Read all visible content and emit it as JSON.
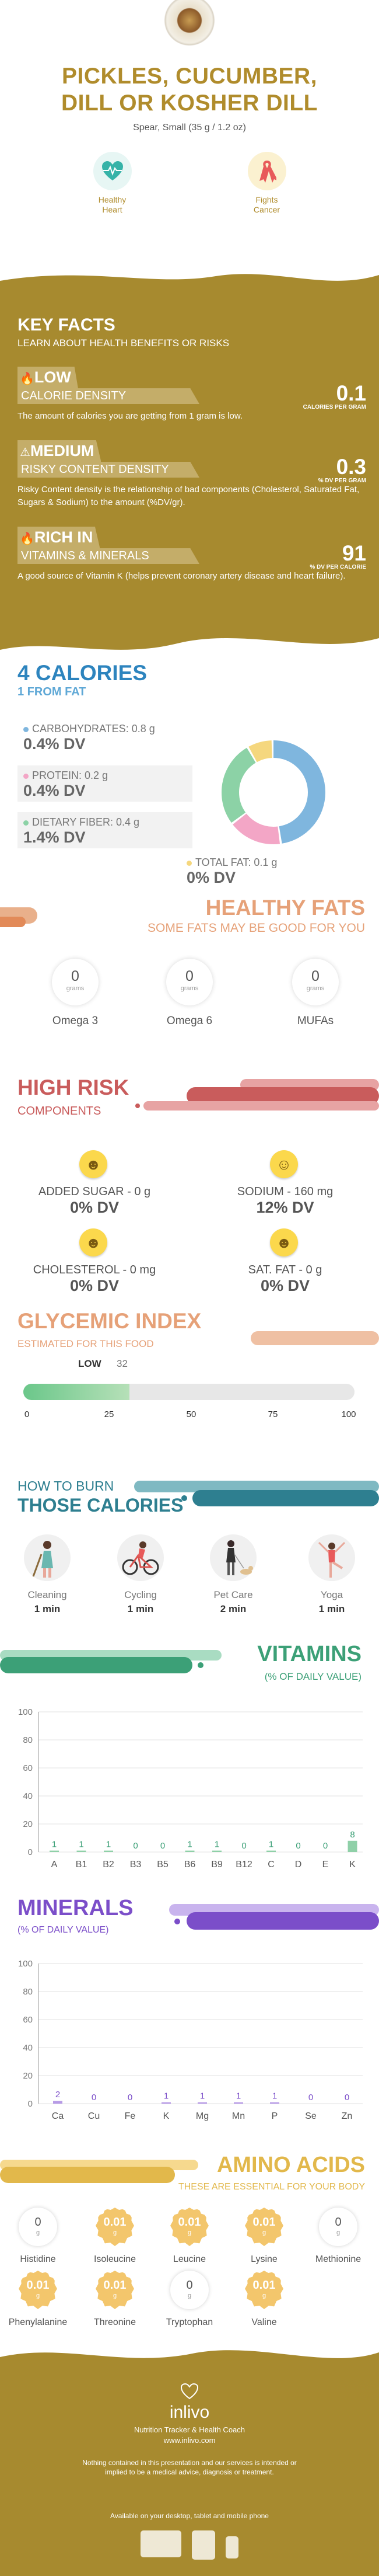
{
  "hero": {
    "title_line1": "PICKLES, CUCUMBER,",
    "title_line2": "DILL OR KOSHER DILL",
    "serving": "Spear, Small (35 g / 1.2 oz)",
    "badges": [
      {
        "icon": "heart-pulse-icon",
        "line1": "Healthy",
        "line2": "Heart",
        "color": "#36b3a8"
      },
      {
        "icon": "awareness-ribbon-icon",
        "line1": "Fights",
        "line2": "Cancer",
        "color": "#e85a5a"
      }
    ]
  },
  "key_facts": {
    "title": "KEY FACTS",
    "subtitle": "LEARN ABOUT HEALTH BENEFITS OR RISKS",
    "items": [
      {
        "icon": "flame-icon",
        "level": "LOW",
        "label": "CALORIE DENSITY",
        "value": "0.1",
        "unit": "CALORIES PER GRAM",
        "desc": "The amount of calories you are getting from 1 gram is low."
      },
      {
        "icon": "warning-icon",
        "level": "MEDIUM",
        "label": "RISKY CONTENT DENSITY",
        "value": "0.3",
        "unit": "% DV PER GRAM",
        "desc": "Risky Content density is the relationship of bad components (Cholesterol, Saturated Fat, Sugars & Sodium) to the amount (%DV/gr)."
      },
      {
        "icon": "flame-icon",
        "level": "RICH  IN",
        "label": "VITAMINS & MINERALS",
        "value": "91",
        "unit": "% DV PER CALORIE",
        "desc": "A good source of Vitamin K (helps prevent coronary artery disease and heart failure)."
      }
    ]
  },
  "calories": {
    "title": "4 CALORIES",
    "subtitle": "1 FROM FAT",
    "nutrients": [
      {
        "label": "CARBOHYDRATES: 0.8 g",
        "dv": "0.4% DV",
        "color": "#7fb6de",
        "bg": "#ffffff"
      },
      {
        "label": "PROTEIN: 0.2 g",
        "dv": "0.4% DV",
        "color": "#f3a6c6",
        "bg": "#f2f2f2"
      },
      {
        "label": "DIETARY FIBER: 0.4 g",
        "dv": "1.4% DV",
        "color": "#8cd2a6",
        "bg": "#f2f2f2"
      },
      {
        "label": "TOTAL FAT: 0.1 g",
        "dv": "0% DV",
        "color": "#f5d77e",
        "bg": "#ffffff"
      }
    ],
    "donut_percent": [
      48,
      17,
      27,
      8
    ]
  },
  "healthy_fats": {
    "title": "HEALTHY FATS",
    "subtitle": "SOME FATS MAY BE GOOD FOR YOU",
    "unit": "grams",
    "items": [
      {
        "value": "0",
        "label": "Omega 3"
      },
      {
        "value": "0",
        "label": "Omega 6"
      },
      {
        "value": "0",
        "label": "MUFAs"
      }
    ]
  },
  "high_risk": {
    "title": "HIGH RISK",
    "subtitle": "COMPONENTS",
    "items": [
      {
        "emoji": "grinning-face-icon",
        "label": "ADDED SUGAR - 0 g",
        "dv": "0% DV"
      },
      {
        "emoji": "smiling-face-icon",
        "label": "SODIUM - 160 mg",
        "dv": "12% DV"
      },
      {
        "emoji": "grinning-face-icon",
        "label": "CHOLESTEROL - 0 mg",
        "dv": "0% DV"
      },
      {
        "emoji": "grinning-face-icon",
        "label": "SAT. FAT - 0 g",
        "dv": "0% DV"
      }
    ]
  },
  "glycemic": {
    "title": "GLYCEMIC INDEX",
    "subtitle": "ESTIMATED FOR THIS FOOD",
    "level": "LOW",
    "value": 32,
    "value_text": "32",
    "ticks": [
      "0",
      "25",
      "50",
      "75",
      "100"
    ]
  },
  "burn": {
    "title_line1": "HOW TO BURN",
    "title_line2": "THOSE CALORIES",
    "items": [
      {
        "icon": "cleaning-icon",
        "label": "Cleaning",
        "time": "1 min"
      },
      {
        "icon": "cycling-icon",
        "label": "Cycling",
        "time": "1 min"
      },
      {
        "icon": "pet-care-icon",
        "label": "Pet Care",
        "time": "2 min"
      },
      {
        "icon": "yoga-icon",
        "label": "Yoga",
        "time": "1 min"
      }
    ]
  },
  "vitamins": {
    "title": "VITAMINS",
    "subtitle": "(% OF DAILY VALUE)",
    "color": "#8fd0a8",
    "label_color": "#3ca077"
  },
  "minerals": {
    "title": "MINERALS",
    "subtitle": "(% OF DAILY VALUE)",
    "color": "#b79be6",
    "label_color": "#7b4ec9"
  },
  "chart_data": [
    {
      "type": "bar",
      "title": "VITAMINS",
      "ylabel": "",
      "xlabel": "",
      "ylim": [
        0,
        100
      ],
      "yticks": [
        0,
        20,
        40,
        60,
        80,
        100
      ],
      "categories": [
        "A",
        "B1",
        "B2",
        "B3",
        "B5",
        "B6",
        "B9",
        "B12",
        "C",
        "D",
        "E",
        "K"
      ],
      "values": [
        1,
        1,
        1,
        0,
        0,
        1,
        1,
        0,
        1,
        0,
        0,
        8
      ]
    },
    {
      "type": "bar",
      "title": "MINERALS",
      "ylabel": "",
      "xlabel": "",
      "ylim": [
        0,
        100
      ],
      "yticks": [
        0,
        20,
        40,
        60,
        80,
        100
      ],
      "categories": [
        "Ca",
        "Cu",
        "Fe",
        "K",
        "Mg",
        "Mn",
        "P",
        "Se",
        "Zn"
      ],
      "values": [
        2,
        0,
        0,
        1,
        1,
        1,
        1,
        0,
        0
      ]
    }
  ],
  "amino": {
    "title": "AMINO ACIDS",
    "subtitle": "THESE ARE ESSENTIAL FOR YOUR BODY",
    "unit": "g",
    "items": [
      {
        "name": "Histidine",
        "value": "0"
      },
      {
        "name": "Isoleucine",
        "value": "0.01"
      },
      {
        "name": "Leucine",
        "value": "0.01"
      },
      {
        "name": "Lysine",
        "value": "0.01"
      },
      {
        "name": "Methionine",
        "value": "0"
      },
      {
        "name": "Phenylalanine",
        "value": "0.01"
      },
      {
        "name": "Threonine",
        "value": "0.01"
      },
      {
        "name": "Tryptophan",
        "value": "0"
      },
      {
        "name": "Valine",
        "value": "0.01"
      }
    ]
  },
  "footer": {
    "brand": "inlivo",
    "tagline": "Nutrition Tracker & Health Coach",
    "site": "www.inlivo.com",
    "disclaimer": "Nothing contained in this presentation and our services is intended or implied to be a medical advice, diagnosis or treatment.",
    "available": "Available on your desktop, tablet and mobile phone"
  },
  "colors": {
    "gold": "#a78a2f",
    "gold_light": "#c4ad69"
  }
}
